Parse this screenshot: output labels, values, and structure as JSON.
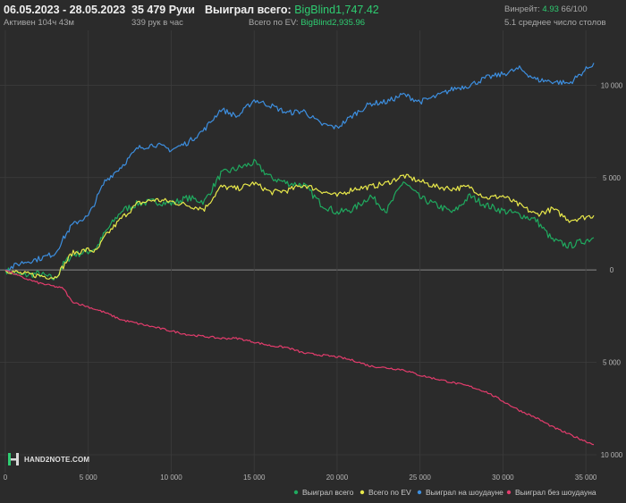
{
  "header": {
    "date_range": "06.05.2023 - 28.05.2023",
    "active_time": "Активен 104ч 43м",
    "hands": "35 479 Руки",
    "hands_per_hour": "339 рук в час",
    "won_total_label": "Выиграл всего:",
    "won_total_value": "BigBlind1,747.42",
    "ev_total_label": "Всего по EV:",
    "ev_total_value": "BigBlind2,935.96",
    "winrate_label": "Винрейт:",
    "winrate_value": "4.93",
    "winrate_suffix": "66/100",
    "avg_tables": "5.1 среднее число столов"
  },
  "logo": {
    "text": "HAND2NOTE.COM"
  },
  "colors": {
    "background": "#2b2b2b",
    "grid": "#3c3c3c",
    "zero_line": "#8a8a8a",
    "won_total": "#1faa5f",
    "ev_total": "#e8e84a",
    "showdown": "#3d8fe0",
    "non_showdown": "#e23c6c"
  },
  "chart_data": {
    "type": "line",
    "xlim": [
      0,
      35479
    ],
    "ylim": [
      -10000,
      12000
    ],
    "x_ticks": [
      0,
      5000,
      10000,
      15000,
      20000,
      25000,
      30000,
      35000
    ],
    "x_tick_labels": [
      "0",
      "5 000",
      "10 000",
      "15 000",
      "20 000",
      "25 000",
      "30 000",
      "35 000"
    ],
    "y_ticks": [
      10000,
      5000,
      0,
      -5000,
      -10000
    ],
    "y_tick_labels": [
      "10 000",
      "5 000",
      "0",
      "5 000",
      "10 000"
    ],
    "grid": true,
    "legend_position": "bottom-right",
    "series": [
      {
        "name": "Выиграл всего",
        "color": "#1faa5f",
        "x": [
          0,
          1000,
          2000,
          3000,
          3500,
          4000,
          5000,
          5500,
          6000,
          7000,
          8000,
          9000,
          10000,
          11000,
          12000,
          13000,
          14000,
          15000,
          16000,
          17000,
          18000,
          19000,
          20000,
          21000,
          22000,
          23000,
          24000,
          25000,
          26000,
          27000,
          28000,
          29000,
          30000,
          31000,
          32000,
          33000,
          34000,
          35479
        ],
        "y": [
          0,
          -300,
          -200,
          -500,
          300,
          800,
          1000,
          1200,
          2000,
          3200,
          3600,
          3700,
          3600,
          3900,
          3700,
          5200,
          5500,
          5800,
          5000,
          4700,
          4600,
          3600,
          3100,
          3300,
          4000,
          3200,
          4800,
          3900,
          3500,
          3100,
          4000,
          3500,
          3200,
          3000,
          2700,
          1600,
          1300,
          1750
        ]
      },
      {
        "name": "Всего по EV",
        "color": "#e8e84a",
        "x": [
          0,
          1000,
          2000,
          3000,
          3500,
          4000,
          5000,
          5500,
          6000,
          7000,
          8000,
          9000,
          10000,
          11000,
          12000,
          13000,
          14000,
          15000,
          16000,
          17000,
          18000,
          19000,
          20000,
          21000,
          22000,
          23000,
          24000,
          25000,
          26000,
          27000,
          28000,
          29000,
          30000,
          31000,
          32000,
          33000,
          34000,
          35479
        ],
        "y": [
          0,
          -200,
          -300,
          -400,
          200,
          900,
          1100,
          1000,
          1800,
          2800,
          3600,
          3800,
          3700,
          3500,
          3300,
          4500,
          4400,
          4700,
          4200,
          4300,
          4600,
          4300,
          4000,
          4400,
          4500,
          4700,
          5100,
          4800,
          4500,
          4400,
          4500,
          3900,
          4000,
          3500,
          3000,
          3300,
          2700,
          2950
        ]
      },
      {
        "name": "Выиграл на шоудауне",
        "color": "#3d8fe0",
        "x": [
          0,
          1000,
          2000,
          3000,
          3500,
          4000,
          4500,
          5000,
          6000,
          7000,
          8000,
          9000,
          10000,
          11000,
          12000,
          13000,
          14000,
          15000,
          16000,
          17000,
          18000,
          19000,
          20000,
          21000,
          22000,
          23000,
          24000,
          25000,
          26000,
          27000,
          28000,
          29000,
          30000,
          31000,
          32000,
          33000,
          34000,
          35479
        ],
        "y": [
          0,
          400,
          600,
          900,
          1700,
          2400,
          2700,
          2900,
          4800,
          5600,
          6600,
          6800,
          6500,
          6900,
          7600,
          8700,
          8300,
          9200,
          8900,
          8500,
          8600,
          7900,
          7700,
          8400,
          9000,
          9100,
          9500,
          9100,
          9400,
          9800,
          10000,
          10400,
          10600,
          10900,
          10300,
          10200,
          10100,
          11200
        ]
      },
      {
        "name": "Выиграл без шоудауна",
        "color": "#e23c6c",
        "x": [
          0,
          1000,
          2000,
          3000,
          3500,
          4000,
          5000,
          6000,
          7000,
          8000,
          9000,
          10000,
          11000,
          12000,
          13000,
          14000,
          15000,
          16000,
          17000,
          18000,
          19000,
          20000,
          21000,
          22000,
          23000,
          24000,
          25000,
          26000,
          27000,
          28000,
          29000,
          30000,
          31000,
          32000,
          33000,
          34000,
          35479
        ],
        "y": [
          0,
          -400,
          -700,
          -900,
          -1000,
          -1700,
          -2000,
          -2300,
          -2700,
          -2900,
          -3100,
          -3300,
          -3500,
          -3600,
          -3700,
          -3700,
          -3900,
          -4100,
          -4200,
          -4500,
          -4600,
          -4700,
          -4900,
          -5200,
          -5300,
          -5400,
          -5700,
          -5900,
          -6100,
          -6300,
          -6600,
          -7100,
          -7600,
          -8000,
          -8500,
          -8900,
          -9450
        ]
      }
    ]
  }
}
